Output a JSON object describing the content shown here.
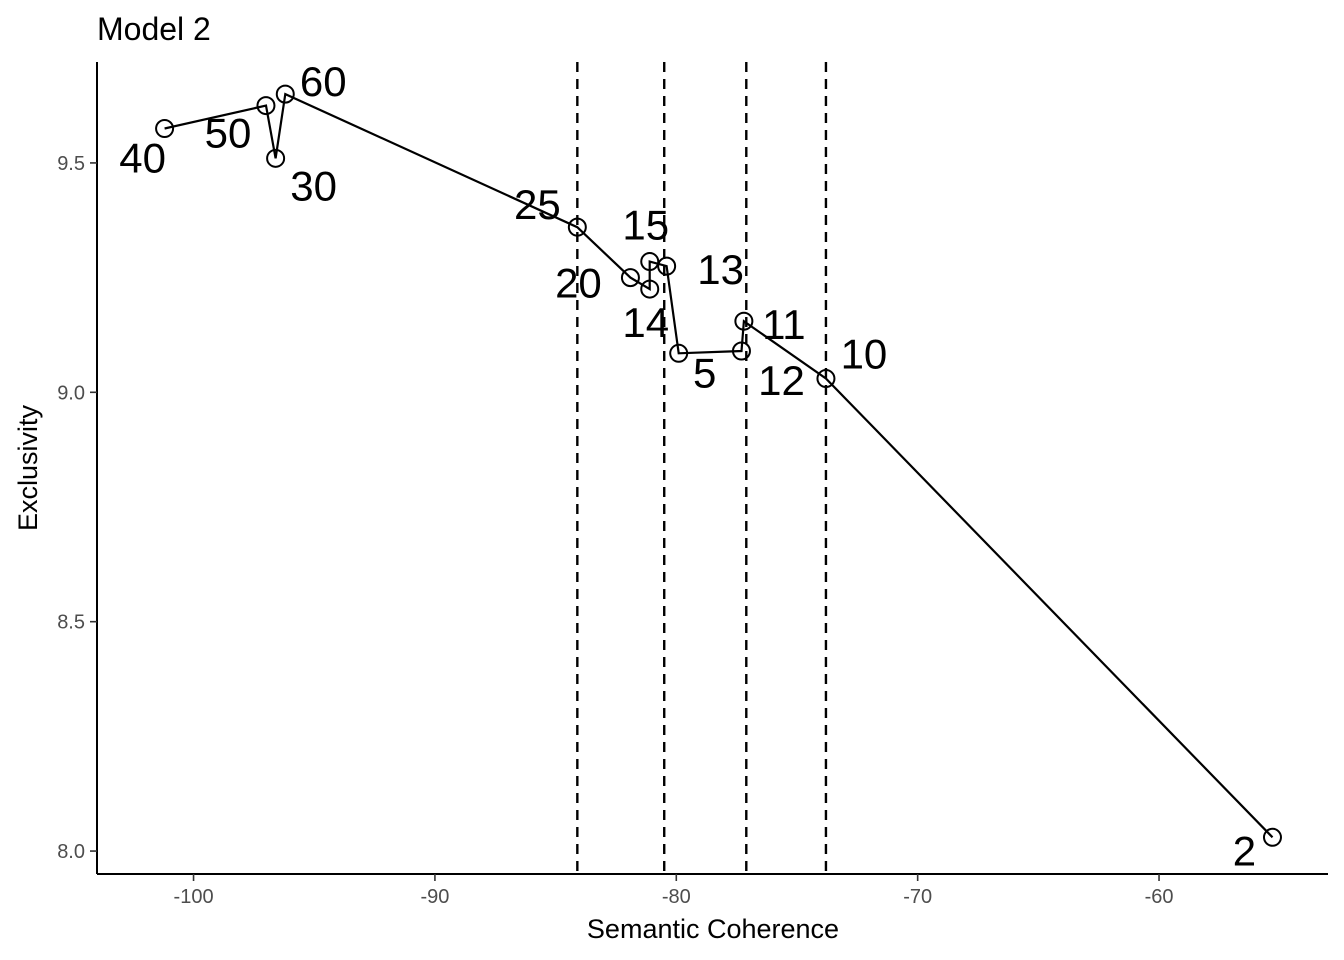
{
  "chart_data": {
    "type": "line",
    "title": "Model 2",
    "xlabel": "Semantic Coherence",
    "ylabel": "Exclusivity",
    "xlim": [
      -104,
      -53
    ],
    "ylim": [
      7.95,
      9.72
    ],
    "x_ticks": [
      -100,
      -90,
      -80,
      -70,
      -60
    ],
    "x_tick_labels": [
      "-100",
      "-90",
      "-80",
      "-70",
      "-60"
    ],
    "y_ticks": [
      8.0,
      8.5,
      9.0,
      9.5
    ],
    "y_tick_labels": [
      "8.0",
      "8.5",
      "9.0",
      "9.5"
    ],
    "vertical_lines": [
      -84.1,
      -80.5,
      -77.1,
      -73.8
    ],
    "grid": false,
    "series": [
      {
        "points": [
          {
            "label": "2",
            "x": -55.3,
            "y": 8.03
          },
          {
            "label": "5",
            "x": -79.9,
            "y": 9.085
          },
          {
            "label": "10",
            "x": -73.8,
            "y": 9.03
          },
          {
            "label": "11",
            "x": -77.2,
            "y": 9.155
          },
          {
            "label": "12",
            "x": -77.3,
            "y": 9.09
          },
          {
            "label": "13",
            "x": -80.4,
            "y": 9.275
          },
          {
            "label": "14",
            "x": -81.1,
            "y": 9.225
          },
          {
            "label": "15",
            "x": -81.1,
            "y": 9.285
          },
          {
            "label": "20",
            "x": -81.9,
            "y": 9.25
          },
          {
            "label": "25",
            "x": -84.1,
            "y": 9.36
          },
          {
            "label": "30",
            "x": -96.6,
            "y": 9.51
          },
          {
            "label": "40",
            "x": -101.2,
            "y": 9.575
          },
          {
            "label": "50",
            "x": -97.0,
            "y": 9.625
          },
          {
            "label": "60",
            "x": -96.2,
            "y": 9.65
          }
        ]
      }
    ]
  }
}
